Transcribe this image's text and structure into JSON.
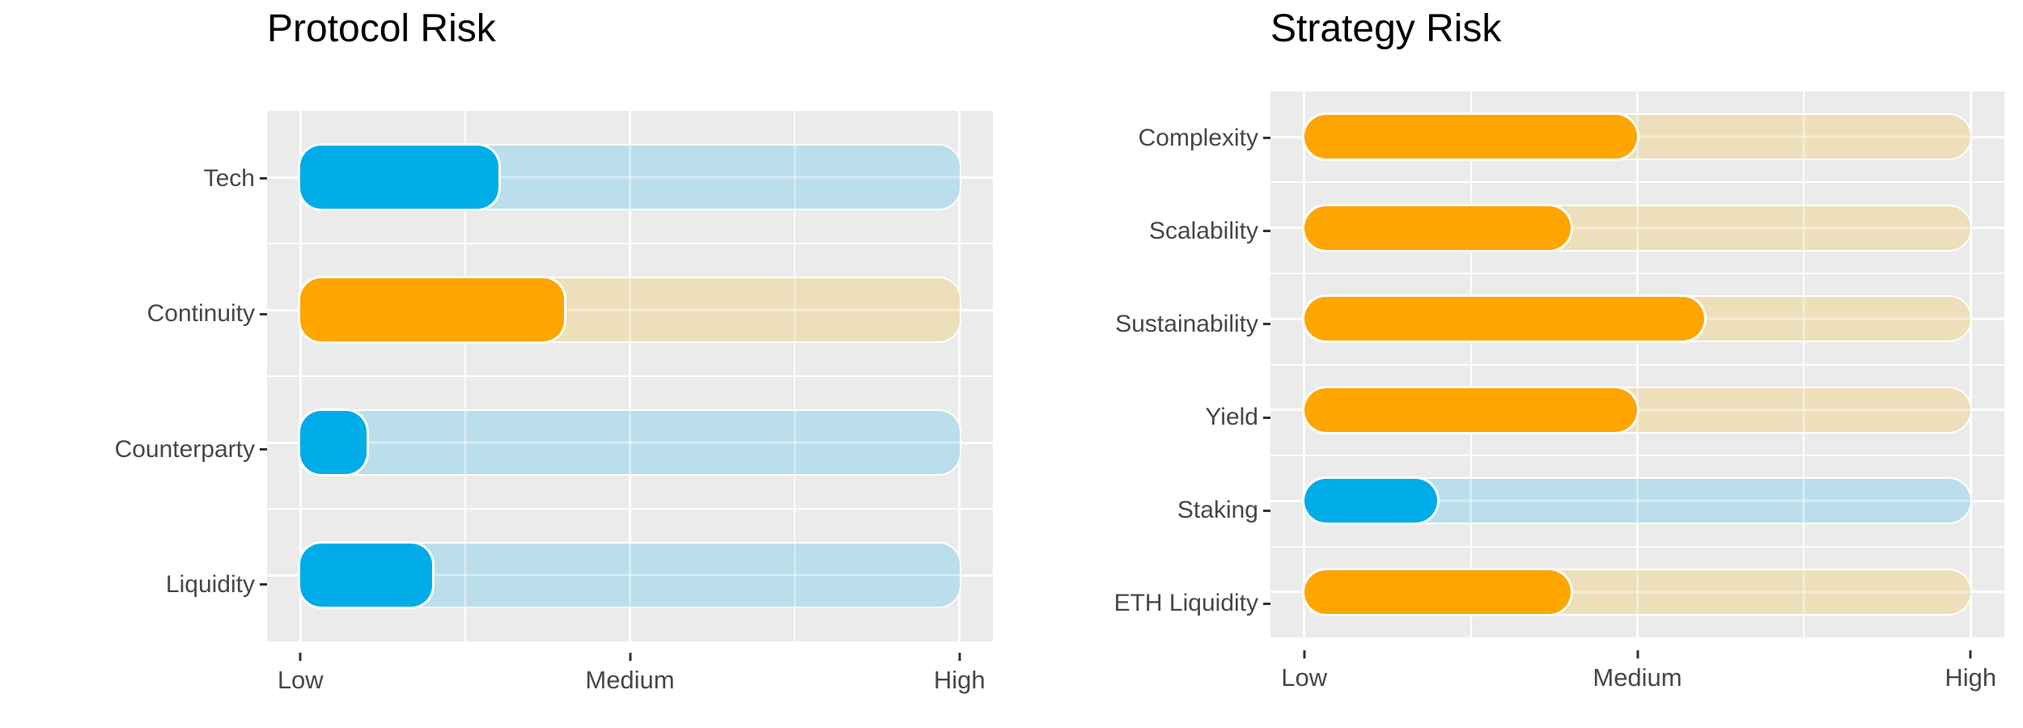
{
  "figure_title": "",
  "axis": {
    "tick_labels": [
      "Low",
      "Medium",
      "High"
    ],
    "tick_positions_pct": [
      4.6,
      50,
      95.4
    ]
  },
  "colors": {
    "panel_bg": "#ebebeb",
    "gridline": "#ffffff",
    "fill_blue": "#00ace8",
    "fill_orange": "#ffa500",
    "track_blue": "#badeeb",
    "track_tan": "#eddfba",
    "axis_text": "#474747",
    "title_text": "#000000",
    "tick_mark": "#333333"
  },
  "chart_data": [
    {
      "type": "bar",
      "orientation": "horizontal",
      "title": "Protocol Risk",
      "categories": [
        "Tech",
        "Continuity",
        "Counterparty",
        "Liquidity"
      ],
      "values": [
        0.3,
        0.4,
        0.1,
        0.2
      ],
      "bar_colors": [
        "blue",
        "orange",
        "blue",
        "blue"
      ],
      "xlabel": "",
      "ylabel": "",
      "x_tick_labels": [
        "Low",
        "Medium",
        "High"
      ],
      "xlim": [
        0,
        1
      ],
      "grid": true,
      "legend": false,
      "note": "each bar drawn over a full-length pale track from Low to High"
    },
    {
      "type": "bar",
      "orientation": "horizontal",
      "title": "Strategy Risk",
      "categories": [
        "Complexity",
        "Scalability",
        "Sustainability",
        "Yield",
        "Staking",
        "ETH Liquidity"
      ],
      "values": [
        0.5,
        0.4,
        0.6,
        0.5,
        0.2,
        0.4
      ],
      "bar_colors": [
        "orange",
        "orange",
        "orange",
        "orange",
        "blue",
        "orange"
      ],
      "xlabel": "",
      "ylabel": "",
      "x_tick_labels": [
        "Low",
        "Medium",
        "High"
      ],
      "xlim": [
        0,
        1
      ],
      "grid": true,
      "legend": false,
      "note": "each bar drawn over a full-length pale track from Low to High"
    }
  ]
}
